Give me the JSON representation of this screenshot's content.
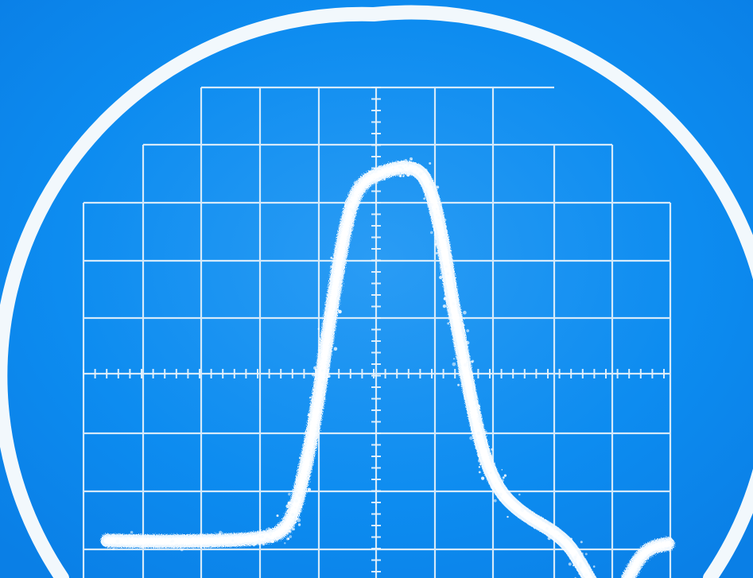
{
  "colors": {
    "screen_blue": "#0a88ee",
    "screen_blue_light": "#2a9cf4",
    "grid_white": "#e6f2fb",
    "trace_white": "#f6fbff",
    "bezel_white": "#f2f8fc"
  },
  "graticule": {
    "major_columns": 10,
    "major_rows": 8,
    "minor_ticks_per_division": 5
  },
  "trace": {
    "description_icon": "waveform-trace",
    "shape": "single-peak-pulse"
  }
}
